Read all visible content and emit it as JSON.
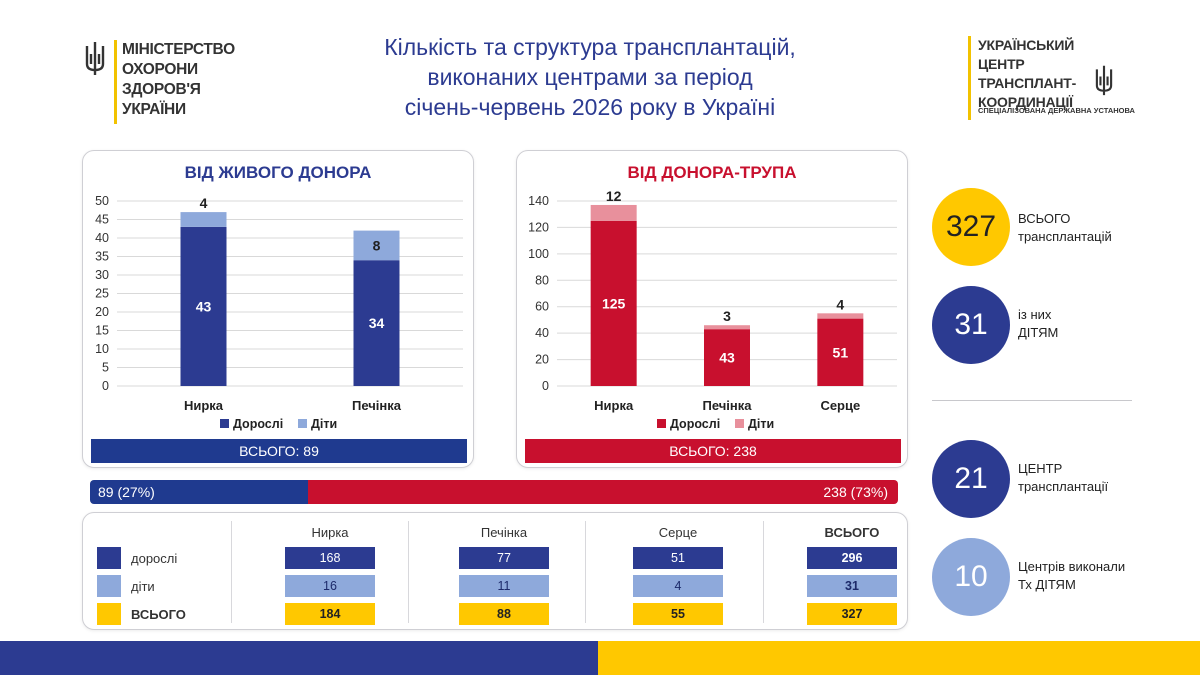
{
  "header": {
    "ministry_lines": [
      "МІНІСТЕРСТВО",
      "ОХОРОНИ",
      "ЗДОРОВ'Я",
      "УКРАЇНИ"
    ],
    "title_lines": [
      "Кількість та структура трансплантацій,",
      "виконаних центрами за період",
      "січень-червень 2026 року в Україні"
    ],
    "center_lines": [
      "УКРАЇНСЬКИЙ ЦЕНТР",
      "ТРАНСПЛАНТ-",
      "КООРДИНАЦІЇ"
    ],
    "center_sub": "СПЕЦІАЛІЗОВАНА ДЕРЖАВНА УСТАНОВА"
  },
  "colors": {
    "adults_live": "#2c3b91",
    "kids_live": "#8ea9db",
    "adults_dead": "#c8102e",
    "kids_dead": "#e8909c",
    "total_yellow": "#ffc800"
  },
  "chart_data": [
    {
      "type": "bar",
      "stacked": true,
      "title": "ВІД ЖИВОГО ДОНОРА",
      "categories": [
        "Нирка",
        "Печінка"
      ],
      "series": [
        {
          "name": "Дорослі",
          "values": [
            43,
            34
          ]
        },
        {
          "name": "Діти",
          "values": [
            4,
            8
          ]
        }
      ],
      "ylim": [
        0,
        50
      ],
      "yticks": [
        0,
        5,
        10,
        15,
        20,
        25,
        30,
        35,
        40,
        45,
        50
      ],
      "grid": true,
      "legend": "bottom",
      "total_label": "ВСЬОГО: 89"
    },
    {
      "type": "bar",
      "stacked": true,
      "title": "ВІД ДОНОРА-ТРУПА",
      "categories": [
        "Нирка",
        "Печінка",
        "Серце"
      ],
      "series": [
        {
          "name": "Дорослі",
          "values": [
            125,
            43,
            51
          ]
        },
        {
          "name": "Діти",
          "values": [
            12,
            3,
            4
          ]
        }
      ],
      "ylim": [
        0,
        140
      ],
      "yticks": [
        0,
        20,
        40,
        60,
        80,
        100,
        120,
        140
      ],
      "grid": true,
      "legend": "bottom",
      "total_label": "ВСЬОГО: 238"
    }
  ],
  "split": {
    "left_label": "89 (27%)",
    "right_label": "238 (73%)",
    "left_fraction": 0.27
  },
  "table": {
    "columns": [
      "Нирка",
      "Печінка",
      "Серце",
      "ВСЬОГО"
    ],
    "rows": [
      {
        "label": "дорослі",
        "values": [
          "168",
          "77",
          "51",
          "296"
        ]
      },
      {
        "label": "діти",
        "values": [
          "16",
          "11",
          "4",
          "31"
        ]
      },
      {
        "label": "ВСЬОГО",
        "values": [
          "184",
          "88",
          "55",
          "327"
        ]
      }
    ]
  },
  "kpis": [
    {
      "value": "327",
      "label_lines": [
        "ВСЬОГО",
        "трансплантацій"
      ],
      "color": "#ffc800",
      "text_color": "#222222"
    },
    {
      "value": "31",
      "label_lines": [
        "із них",
        "ДІТЯМ"
      ],
      "color": "#2c3b91",
      "text_color": "#ffffff"
    },
    {
      "value": "21",
      "label_lines": [
        "ЦЕНТР",
        "трансплантації"
      ],
      "color": "#2c3b91",
      "text_color": "#ffffff"
    },
    {
      "value": "10",
      "label_lines": [
        "Центрів виконали",
        "Тх ДІТЯМ"
      ],
      "color": "#8ea9db",
      "text_color": "#ffffff"
    }
  ]
}
